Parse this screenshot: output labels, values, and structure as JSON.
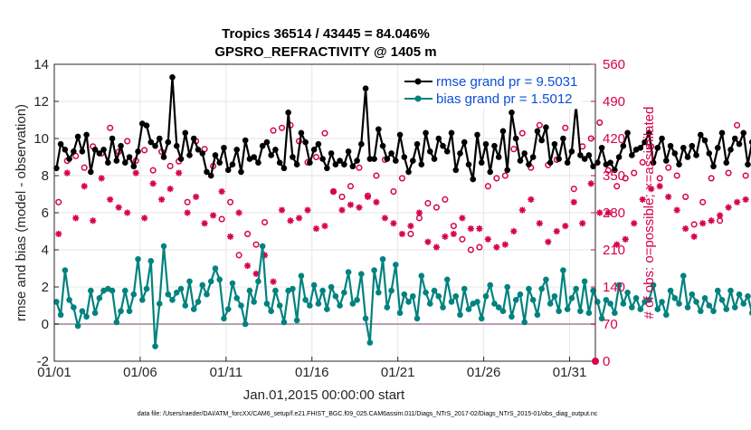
{
  "chart_data": {
    "type": "line",
    "title": "Tropics 36514 / 43445 = 84.046%",
    "subtitle": "GPSRO_REFRACTIVITY @ 1405 m",
    "xlabel": "Jan.01,2015 00:00:00 start",
    "ylabel": "rmse and bias (model - observation)",
    "ylabel_right": "# of obs: o=possible; ×=assimilated",
    "xlim": [
      0,
      31.5
    ],
    "ylim": [
      -2,
      14
    ],
    "ylim_right": [
      0,
      560
    ],
    "x_ticks": [
      0,
      5,
      10,
      15,
      20,
      25,
      30
    ],
    "x_tick_labels": [
      "01/01",
      "01/06",
      "01/11",
      "01/16",
      "01/21",
      "01/26",
      "01/31"
    ],
    "y_ticks": [
      -2,
      0,
      2,
      4,
      6,
      8,
      10,
      12,
      14
    ],
    "y_tick_labels": [
      "-2",
      "0",
      "2",
      "4",
      "6",
      "8",
      "10",
      "12",
      "14"
    ],
    "y_ticks_right": [
      0,
      70,
      140,
      210,
      280,
      350,
      420,
      490,
      560
    ],
    "y_tick_labels_right": [
      "0",
      "70",
      "140",
      "210",
      "280",
      "350",
      "420",
      "490",
      "560"
    ],
    "zero_line": 0,
    "grid": true,
    "legend_position": "top-right",
    "colors": {
      "rmse": "#000000",
      "bias": "#00827f",
      "obs": "#d6004d",
      "zero_line": "#b9a1b3",
      "grid": "#e6e6e6"
    },
    "series": [
      {
        "name": "rmse grand pr = 9.5031",
        "type": "line",
        "marker": "filled-circle",
        "step_days": 0.25,
        "values": [
          8.4,
          9.7,
          9.4,
          8.9,
          9.3,
          10.1,
          9.3,
          10.2,
          8.2,
          9.4,
          9.2,
          9.4,
          8.7,
          10.0,
          8.8,
          9.6,
          8.7,
          9.0,
          8.5,
          9.3,
          10.8,
          10.7,
          9.8,
          9.6,
          10.0,
          9.0,
          9.8,
          13.3,
          9.6,
          8.9,
          10.3,
          9.1,
          10.0,
          9.4,
          9.2,
          8.2,
          8.0,
          9.1,
          8.7,
          9.5,
          8.3,
          8.6,
          9.4,
          8.2,
          9.9,
          8.9,
          9.0,
          8.7,
          9.6,
          9.8,
          9.1,
          9.4,
          8.7,
          8.4,
          11.4,
          9.0,
          8.6,
          10.3,
          9.8,
          8.7,
          9.4,
          9.7,
          8.9,
          8.4,
          9.2,
          8.6,
          8.8,
          8.6,
          9.3,
          8.5,
          8.8,
          9.7,
          12.7,
          8.9,
          8.9,
          10.5,
          9.6,
          8.9,
          9.2,
          8.8,
          10.2,
          9.0,
          8.2,
          8.8,
          9.7,
          8.6,
          10.3,
          9.3,
          8.9,
          10.0,
          9.6,
          9.3,
          10.3,
          8.3,
          9.2,
          9.8,
          8.6,
          7.8,
          10.2,
          8.7,
          9.7,
          8.2,
          9.6,
          9.0,
          10.4,
          8.3,
          11.4,
          10.0,
          8.8,
          9.2,
          8.6,
          9.0,
          10.4,
          9.9,
          10.6,
          8.7,
          9.7,
          8.9,
          10.0,
          8.7,
          9.3,
          11.8,
          9.1,
          8.9,
          9.1,
          8.5,
          8.7,
          9.5,
          8.6,
          8.7,
          8.3,
          9.0,
          9.6,
          10.3,
          9.1,
          9.4,
          9.5,
          9.8,
          10.3,
          8.7,
          9.5,
          10.0,
          8.8,
          9.6,
          9.2,
          8.6,
          9.5,
          9.0,
          9.6,
          9.1,
          10.2,
          9.9,
          9.2,
          8.5,
          9.5,
          10.3,
          8.7,
          9.4,
          10.0,
          9.7,
          10.3,
          8.6,
          9.8,
          8.3,
          8.9,
          10.1,
          9.8,
          8.6,
          11.1
        ]
      },
      {
        "name": "bias grand pr = 1.5012",
        "type": "line",
        "marker": "filled-circle",
        "step_days": 0.25,
        "values": [
          1.2,
          0.5,
          2.9,
          1.3,
          0.9,
          -0.1,
          0.7,
          0.4,
          1.8,
          0.6,
          1.4,
          1.8,
          1.9,
          1.8,
          0.1,
          0.7,
          1.8,
          0.7,
          1.6,
          3.5,
          1.3,
          1.9,
          3.4,
          -1.2,
          1.1,
          4.2,
          1.6,
          1.3,
          1.7,
          1.9,
          1.0,
          2.3,
          0.8,
          1.2,
          2.1,
          1.6,
          2.3,
          3.0,
          2.4,
          0.3,
          0.8,
          2.2,
          1.4,
          1.0,
          0.0,
          1.8,
          1.2,
          2.3,
          4.2,
          1.1,
          0.7,
          1.8,
          1.0,
          0.1,
          1.8,
          1.9,
          0.2,
          2.6,
          1.3,
          1.0,
          2.1,
          1.1,
          1.8,
          0.8,
          2.0,
          1.5,
          1.0,
          1.7,
          2.8,
          1.1,
          1.3,
          2.7,
          0.3,
          -1.0,
          2.9,
          1.7,
          3.5,
          0.9,
          1.8,
          3.2,
          0.6,
          1.6,
          1.2,
          1.5,
          0.3,
          2.6,
          1.7,
          1.1,
          1.8,
          1.5,
          0.9,
          2.4,
          1.2,
          1.5,
          0.5,
          1.9,
          0.8,
          1.1,
          1.2,
          0.3,
          1.5,
          2.1,
          1.1,
          0.9,
          0.7,
          2.0,
          0.4,
          1.3,
          1.6,
          0.1,
          1.9,
          1.3,
          0.5,
          1.9,
          2.4,
          1.1,
          1.5,
          0.7,
          2.9,
          0.8,
          1.4,
          1.9,
          0.7,
          2.3,
          0.6,
          1.8,
          1.2,
          0.3,
          1.3,
          1.1,
          0.6,
          2.1,
          1.1,
          1.7,
          0.9,
          1.4,
          0.8,
          1.2,
          1.3,
          2.1,
          0.8,
          1.2,
          0.5,
          1.8,
          1.4,
          1.1,
          2.6,
          0.9,
          1.6,
          1.2,
          0.7,
          1.4,
          1.0,
          0.7,
          1.8,
          1.3,
          0.8,
          1.8,
          0.9,
          1.6,
          1.1,
          1.5,
          0.6,
          1.1,
          1.4,
          0.6,
          1.8,
          1.2,
          -0.4,
          0.9,
          1.3,
          0.5,
          1.5,
          0.9,
          1.3,
          1.2,
          1.1,
          1.0,
          0.3,
          0.9,
          1.4,
          0.7,
          1.0,
          0.5,
          1.2,
          0.8,
          1.0,
          -0.6
        ]
      },
      {
        "name": "possible obs",
        "type": "scatter",
        "marker": "open-circle",
        "axis": "right",
        "step_days": 0.5,
        "values": [
          300,
          378,
          387,
          365,
          405,
          392,
          440,
          395,
          415,
          378,
          398,
          360,
          395,
          368,
          377,
          300,
          415,
          400,
          368,
          268,
          300,
          200,
          240,
          220,
          262,
          435,
          440,
          445,
          415,
          375,
          385,
          430,
          320,
          310,
          330,
          365,
          312,
          350,
          380,
          320,
          345,
          240,
          270,
          298,
          290,
          305,
          255,
          230,
          210,
          215,
          330,
          345,
          350,
          400,
          430,
          365,
          445,
          370,
          380,
          440,
          325,
          405,
          420,
          450,
          360,
          330,
          345,
          355,
          375,
          405,
          345,
          365,
          350,
          310,
          258,
          300,
          345,
          265,
          355,
          445,
          350,
          355,
          375,
          400,
          358,
          362,
          425,
          415,
          340,
          395,
          410,
          395,
          390,
          340,
          390,
          370,
          420,
          380,
          380,
          400,
          420,
          390,
          385,
          395,
          380,
          360,
          420,
          370,
          315,
          390,
          375,
          310,
          295,
          375,
          330,
          355,
          365,
          360,
          340,
          345,
          330,
          365,
          360,
          350,
          350,
          345,
          385,
          368,
          355,
          355
        ]
      },
      {
        "name": "assimilated obs",
        "type": "scatter",
        "marker": "asterisk",
        "axis": "right",
        "step_days": 0.5,
        "values": [
          240,
          355,
          270,
          330,
          265,
          345,
          305,
          290,
          280,
          355,
          270,
          335,
          305,
          325,
          355,
          280,
          310,
          260,
          275,
          320,
          235,
          280,
          180,
          165,
          200,
          150,
          285,
          265,
          270,
          285,
          250,
          255,
          320,
          285,
          295,
          290,
          310,
          300,
          270,
          260,
          240,
          255,
          280,
          225,
          215,
          235,
          240,
          270,
          250,
          250,
          230,
          215,
          220,
          245,
          285,
          305,
          260,
          225,
          245,
          255,
          300,
          260,
          335,
          280,
          280,
          220,
          230,
          260,
          305,
          325,
          330,
          310,
          285,
          250,
          235,
          260,
          265,
          275,
          290,
          300,
          305,
          310,
          330,
          285,
          270,
          255,
          235,
          225,
          220,
          250,
          255,
          265,
          295,
          305,
          325,
          340,
          330,
          300,
          320,
          315,
          350,
          340,
          360,
          375,
          330,
          300,
          325,
          320,
          285,
          265,
          235,
          300,
          280,
          220,
          250,
          265,
          280,
          305,
          320,
          325,
          310,
          300,
          290,
          305,
          320,
          325,
          335,
          345,
          355,
          350
        ]
      }
    ],
    "footer": "data file: /Users/raeder/DAI/ATM_forcXX/CAM6_setup/f.e21.FHIST_BGC.f09_025.CAM6assim.011/Diags_NTrS_2017-02/Diags_NTrS_2015-01/obs_diag_output.nc"
  }
}
